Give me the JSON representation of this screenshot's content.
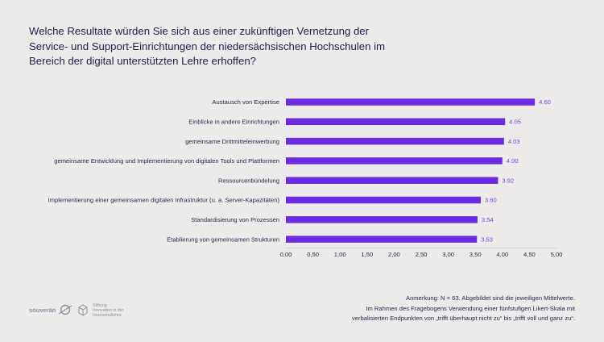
{
  "title_lines": [
    "Welche Resultate würden Sie sich aus einer zukünftigen Vernetzung der",
    "Service- und Support-Einrichtungen der niedersächsischen Hochschulen im",
    "Bereich der digital unterstützten Lehre erhoffen?"
  ],
  "chart_data": {
    "type": "bar",
    "orientation": "horizontal",
    "categories": [
      "Austausch von Expertise",
      "Einblicke in andere Einrichtungen",
      "gemeinsame Drittmitteleinwerbung",
      "gemeinsame Entwicklung und Implementierung von digitalen Tools und Plattformen",
      "Ressourcenbündelung",
      "Implementierung einer gemeinsamen digitalen Infrastruktur (u. a. Server-Kapazitäten)",
      "Standardisierung von Prozessen",
      "Etablierung von gemeinsamen Strukturen"
    ],
    "values": [
      4.6,
      4.05,
      4.03,
      4.0,
      3.92,
      3.6,
      3.54,
      3.53
    ],
    "value_labels": [
      "4.60",
      "4.05",
      "4.03",
      "4.00",
      "3.92",
      "3.60",
      "3.54",
      "3.53"
    ],
    "xlim": [
      0,
      5
    ],
    "xticks": [
      0,
      0.5,
      1,
      1.5,
      2,
      2.5,
      3,
      3.5,
      4,
      4.5,
      5
    ],
    "xtick_labels": [
      "0,00",
      "0,50",
      "1,00",
      "1,50",
      "2,00",
      "2,50",
      "3,00",
      "3,50",
      "4,00",
      "4,50",
      "5,00"
    ],
    "grid": false,
    "bar_color": "#6b2be0",
    "value_label_color": "#7b3fe0"
  },
  "note_lines": [
    "Anmerkung: N = 63. Abgebildet sind die jeweiligen Mittelwerte.",
    "Im Rahmen des Fragebogens Verwendung einer fünfstufigen Likert-Skala mit",
    "verbalisierten Endpunkten von „trifft überhaupt nicht zu“ bis „trifft voll und ganz zu“."
  ],
  "logos": {
    "souveran": {
      "text": "souverän",
      "icon": "souveran-logo-icon"
    },
    "stiftung": {
      "lines": [
        "Stiftung",
        "Innovation in der",
        "Hochschullehre"
      ],
      "icon": "stiftung-logo-icon"
    }
  }
}
